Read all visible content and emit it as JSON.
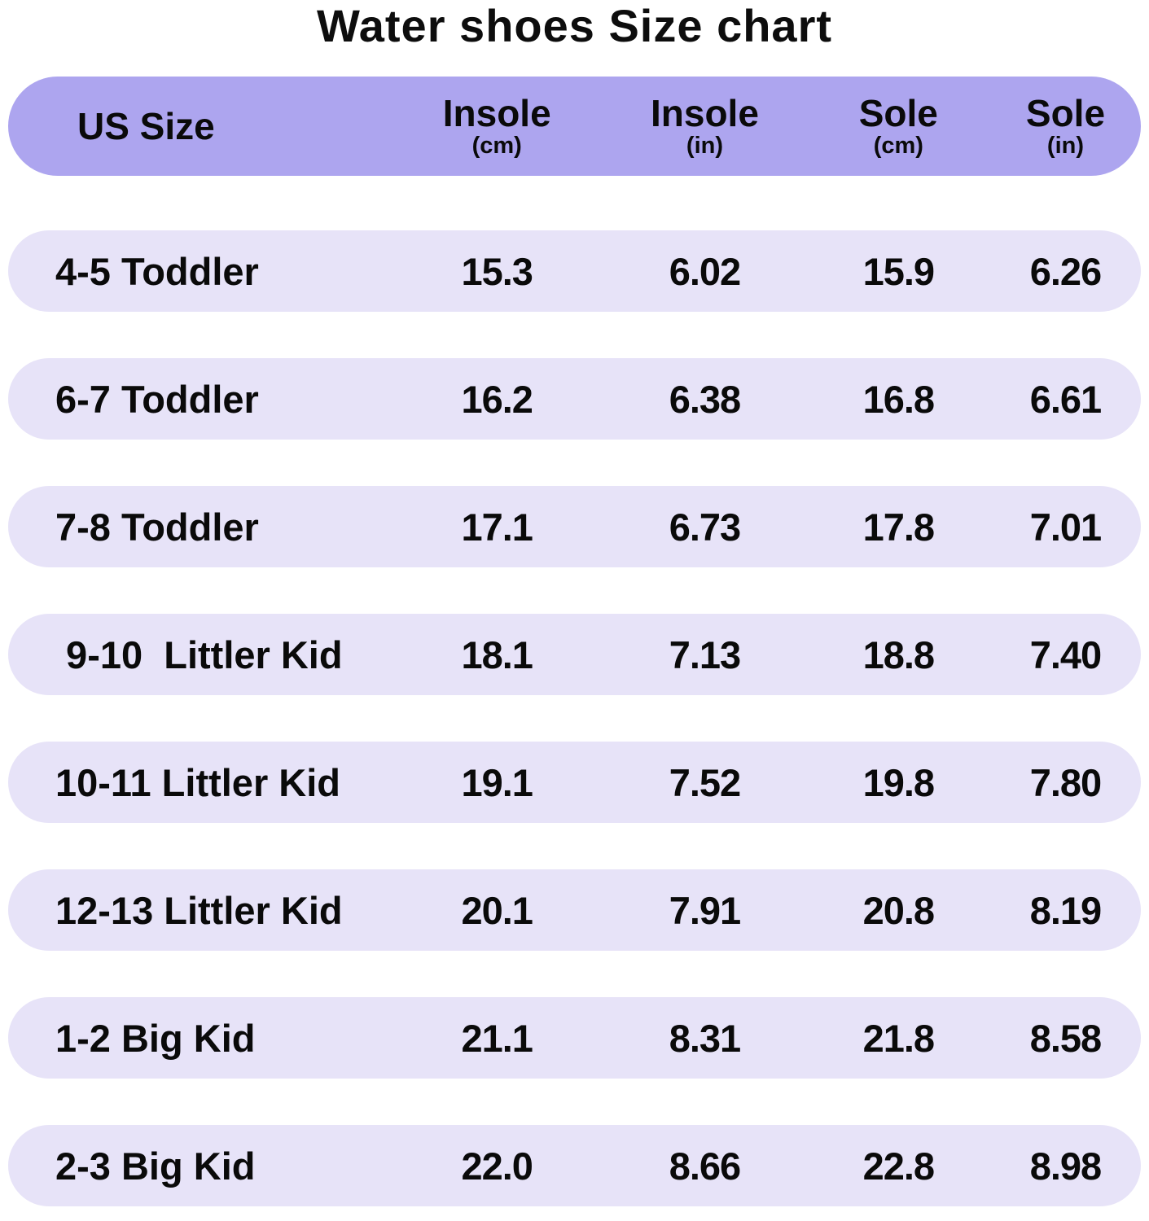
{
  "title": "Water shoes Size chart",
  "colors": {
    "header_bg": "#ada5ef",
    "row_bg": "#e7e3f8",
    "text": "#0a0a0a"
  },
  "chart_data": {
    "type": "table",
    "title": "Water shoes Size chart",
    "columns": [
      {
        "label": "US Size",
        "sub": ""
      },
      {
        "label": "Insole",
        "sub": "(cm)"
      },
      {
        "label": "Insole",
        "sub": "(in)"
      },
      {
        "label": "Sole",
        "sub": "(cm)"
      },
      {
        "label": "Sole",
        "sub": "(in)"
      }
    ],
    "rows": [
      [
        "4-5 Toddler",
        "15.3",
        "6.02",
        "15.9",
        "6.26"
      ],
      [
        "6-7 Toddler",
        "16.2",
        "6.38",
        "16.8",
        "6.61"
      ],
      [
        "7-8 Toddler",
        "17.1",
        "6.73",
        "17.8",
        "7.01"
      ],
      [
        " 9-10  Littler Kid",
        "18.1",
        "7.13",
        "18.8",
        "7.40"
      ],
      [
        "10-11 Littler Kid",
        "19.1",
        "7.52",
        "19.8",
        "7.80"
      ],
      [
        "12-13 Littler Kid",
        "20.1",
        "7.91",
        "20.8",
        "8.19"
      ],
      [
        "1-2 Big Kid",
        "21.1",
        "8.31",
        "21.8",
        "8.58"
      ],
      [
        "2-3 Big Kid",
        "22.0",
        "8.66",
        "22.8",
        "8.98"
      ]
    ]
  }
}
